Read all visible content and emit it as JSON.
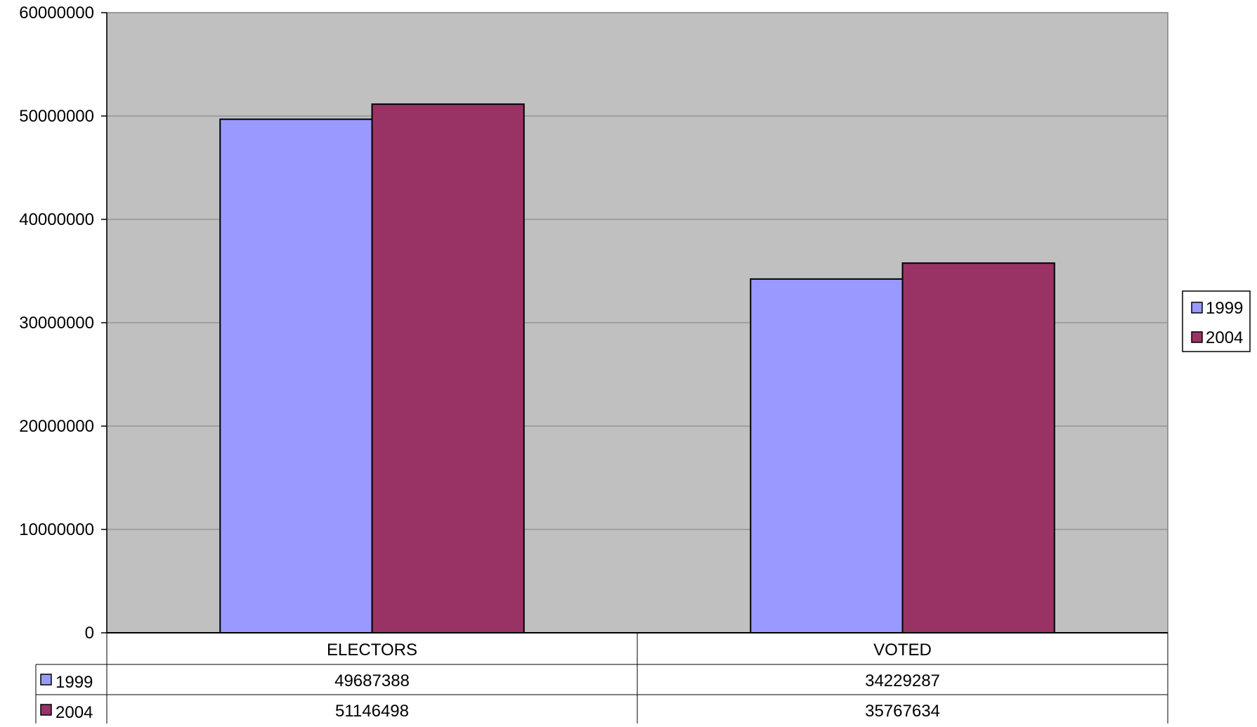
{
  "chart_data": {
    "type": "bar",
    "categories": [
      "ELECTORS",
      "VOTED"
    ],
    "series": [
      {
        "name": "1999",
        "values": [
          49687388,
          34229287
        ],
        "color": "#9999ff"
      },
      {
        "name": "2004",
        "values": [
          51146498,
          35767634
        ],
        "color": "#993366"
      }
    ],
    "ylim": [
      0,
      60000000
    ],
    "yticks": [
      0,
      10000000,
      20000000,
      30000000,
      40000000,
      50000000,
      60000000
    ],
    "title": "",
    "xlabel": "",
    "ylabel": "",
    "grid": true,
    "legend": "right",
    "data_table": true,
    "plot_background": "#c0c0c0"
  }
}
